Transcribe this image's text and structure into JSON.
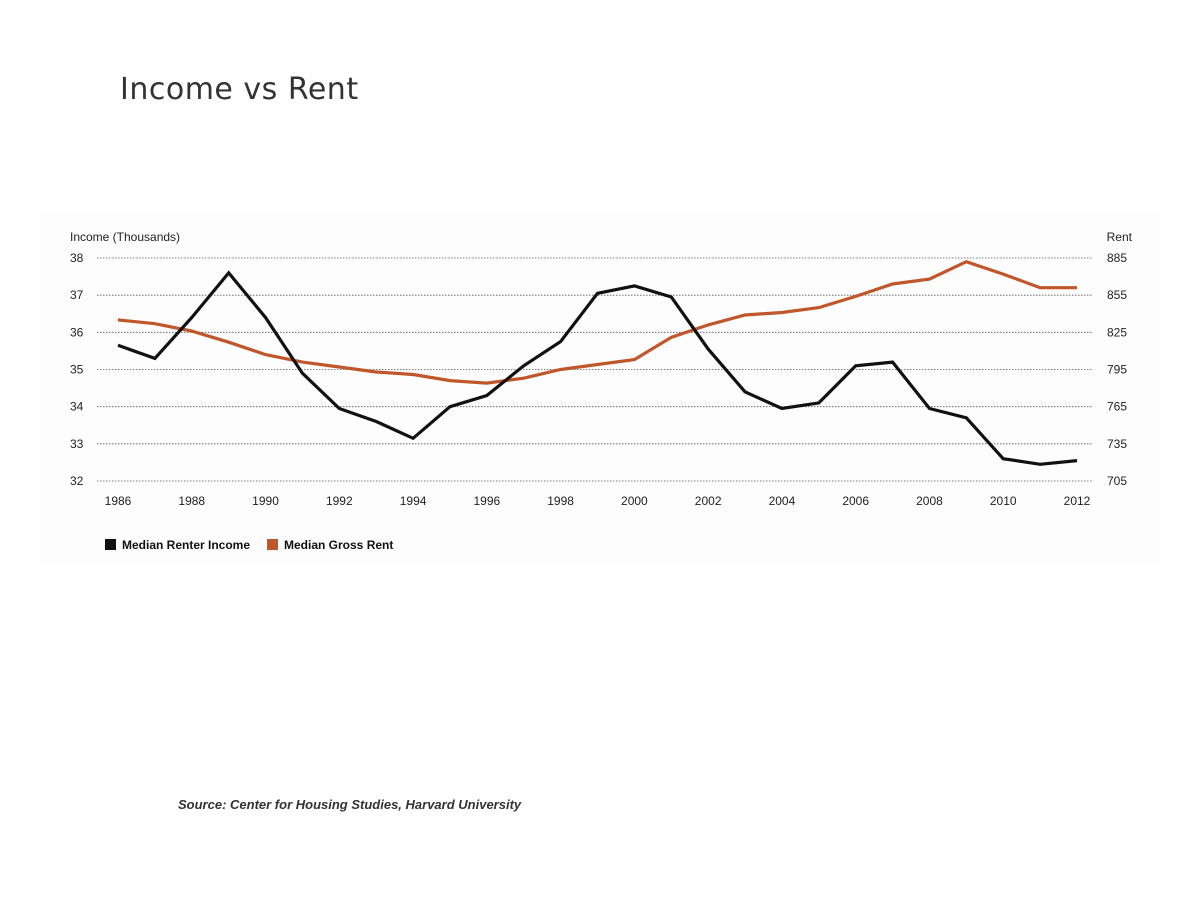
{
  "page": {
    "title": "Income vs Rent",
    "source": "Source: Center for Housing Studies, Harvard University"
  },
  "chart_data": {
    "type": "line",
    "title": "",
    "left_axis": {
      "label": "Income (Thousands)",
      "ticks": [
        "32",
        "33",
        "34",
        "35",
        "36",
        "37",
        "38"
      ],
      "range": [
        32,
        38
      ]
    },
    "right_axis": {
      "label": "Rent",
      "ticks": [
        "705",
        "735",
        "765",
        "795",
        "825",
        "855",
        "885"
      ],
      "range": [
        705,
        885
      ]
    },
    "x_ticks": [
      "1986",
      "1988",
      "1990",
      "1992",
      "1994",
      "1996",
      "1998",
      "2000",
      "2002",
      "2004",
      "2006",
      "2008",
      "2010",
      "2012"
    ],
    "x": [
      1986,
      1987,
      1988,
      1989,
      1990,
      1991,
      1992,
      1993,
      1994,
      1995,
      1996,
      1997,
      1998,
      1999,
      2000,
      2001,
      2002,
      2003,
      2004,
      2005,
      2006,
      2007,
      2008,
      2009,
      2010,
      2011,
      2012
    ],
    "grid": "horizontal dotted",
    "legend_position": "bottom-left",
    "series": [
      {
        "name": "Median Renter Income",
        "axis": "left",
        "color": "#111111",
        "values": [
          35.65,
          35.3,
          36.4,
          37.6,
          36.4,
          34.9,
          33.95,
          33.6,
          33.15,
          34.0,
          34.3,
          35.1,
          35.75,
          37.05,
          37.25,
          36.95,
          35.55,
          34.4,
          33.95,
          34.1,
          35.1,
          35.2,
          33.95,
          33.7,
          32.6,
          32.45,
          32.55
        ]
      },
      {
        "name": "Median Gross Rent",
        "axis": "right",
        "color": "#c0562a",
        "values": [
          835,
          832,
          826,
          817,
          807,
          801,
          797,
          793,
          791,
          786,
          784,
          788,
          795,
          799,
          803,
          821,
          831,
          839,
          841,
          845,
          854,
          864,
          868,
          882,
          872,
          861,
          861
        ]
      }
    ]
  }
}
